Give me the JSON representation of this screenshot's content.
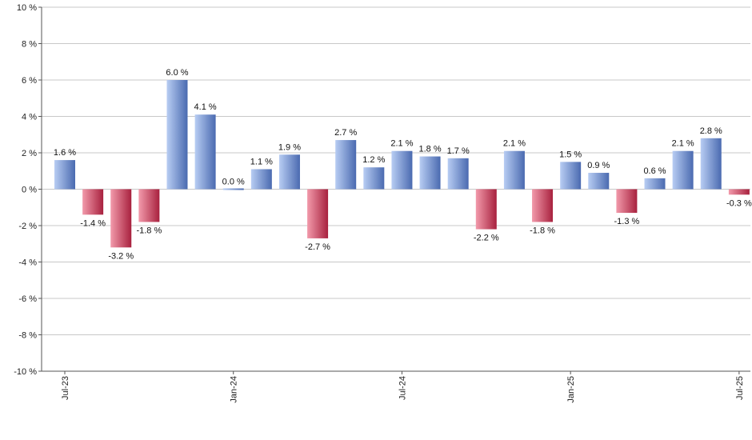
{
  "chart_data": {
    "type": "bar",
    "categories": [
      "Jul-23",
      "Aug-23",
      "Sep-23",
      "Oct-23",
      "Nov-23",
      "Dec-23",
      "Jan-24",
      "Feb-24",
      "Mar-24",
      "Apr-24",
      "May-24",
      "Jun-24",
      "Jul-24",
      "Aug-24",
      "Sep-24",
      "Oct-24",
      "Nov-24",
      "Dec-24",
      "Jan-25",
      "Feb-25",
      "Mar-25",
      "Apr-25",
      "May-25",
      "Jun-25",
      "Jul-25"
    ],
    "values": [
      1.6,
      -1.4,
      -3.2,
      -1.8,
      6.0,
      4.1,
      0.0,
      1.1,
      1.9,
      -2.7,
      2.7,
      1.2,
      2.1,
      1.8,
      1.7,
      -2.2,
      2.1,
      -1.8,
      1.5,
      0.9,
      -1.3,
      0.6,
      2.1,
      2.8,
      -0.3
    ],
    "data_labels": [
      "1.6 %",
      "-1.4 %",
      "-3.2 %",
      "-1.8 %",
      "6.0 %",
      "4.1 %",
      "0.0 %",
      "1.1 %",
      "1.9 %",
      "-2.7 %",
      "2.7 %",
      "1.2 %",
      "2.1 %",
      "1.8 %",
      "1.7 %",
      "-2.2 %",
      "2.1 %",
      "-1.8 %",
      "1.5 %",
      "0.9 %",
      "-1.3 %",
      "0.6 %",
      "2.1 %",
      "2.8 %",
      "-0.3 %"
    ],
    "ylim": [
      -10,
      10
    ],
    "yticks": [
      10,
      8,
      6,
      4,
      2,
      0,
      -2,
      -4,
      -6,
      -8,
      -10
    ],
    "ytick_labels": [
      "10 %",
      "8 %",
      "6 %",
      "4 %",
      "2 %",
      "0 %",
      "-2 %",
      "-4 %",
      "-6 %",
      "-8 %",
      "-10 %"
    ],
    "xtick_labels": [
      {
        "category": "Jul-23",
        "label": "Jul-23"
      },
      {
        "category": "Jan-24",
        "label": "Jan-24"
      },
      {
        "category": "Jul-24",
        "label": "Jul-24"
      },
      {
        "category": "Jan-25",
        "label": "Jan-25"
      },
      {
        "category": "Jul-25",
        "label": "Jul-25"
      }
    ],
    "grid": true,
    "legend": "none",
    "colors": {
      "positive_light": "#b8cdf3",
      "positive_dark": "#4a6ab0",
      "negative_light": "#f29aab",
      "negative_dark": "#a8213e"
    }
  }
}
